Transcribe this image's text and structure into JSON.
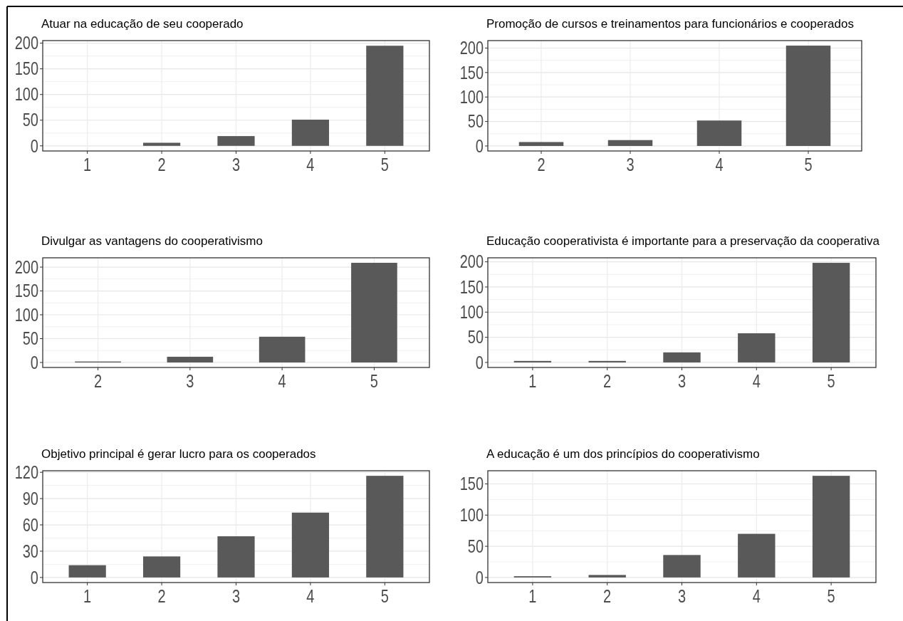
{
  "chart_data": [
    {
      "type": "bar",
      "title": "Atuar na educação de seu cooperado",
      "categories": [
        "1",
        "2",
        "3",
        "4",
        "5"
      ],
      "values": [
        0,
        6,
        19,
        51,
        195
      ],
      "color": "#595959",
      "ylim": [
        -10,
        205
      ],
      "yticks": [
        0,
        50,
        100,
        150,
        200
      ],
      "grid": true
    },
    {
      "type": "bar",
      "title": "Promoção de cursos e treinamentos para funcionários e cooperados",
      "categories": [
        "2",
        "3",
        "4",
        "5"
      ],
      "values": [
        8,
        12,
        52,
        205
      ],
      "color": "#595959",
      "ylim": [
        -10.25,
        215.25
      ],
      "yticks": [
        0,
        50,
        100,
        150,
        200
      ],
      "grid": true
    },
    {
      "type": "bar",
      "title": "Divulgar as vantagens do cooperativismo",
      "categories": [
        "2",
        "3",
        "4",
        "5"
      ],
      "values": [
        2,
        12,
        54,
        209
      ],
      "color": "#595959",
      "ylim": [
        -10.5,
        219.5
      ],
      "yticks": [
        0,
        50,
        100,
        150,
        200
      ],
      "grid": true
    },
    {
      "type": "bar",
      "title": "Educação cooperativista é importante para a preservação da cooperativa",
      "categories": [
        "1",
        "2",
        "3",
        "4",
        "5"
      ],
      "values": [
        3,
        3,
        20,
        58,
        198
      ],
      "color": "#595959",
      "ylim": [
        -10,
        208
      ],
      "yticks": [
        0,
        50,
        100,
        150,
        200
      ],
      "grid": true
    },
    {
      "type": "bar",
      "title": "Objetivo principal é gerar lucro para os cooperados",
      "categories": [
        "1",
        "2",
        "3",
        "4",
        "5"
      ],
      "values": [
        14,
        24,
        47,
        74,
        116
      ],
      "color": "#595959",
      "ylim": [
        -5.8,
        121.8
      ],
      "yticks": [
        0,
        30,
        60,
        90,
        120
      ],
      "grid": true
    },
    {
      "type": "bar",
      "title": "A educação é um dos princípios do cooperativismo",
      "categories": [
        "1",
        "2",
        "3",
        "4",
        "5"
      ],
      "values": [
        2,
        4,
        36,
        70,
        163
      ],
      "color": "#595959",
      "ylim": [
        -8.15,
        171.15
      ],
      "yticks": [
        0,
        50,
        100,
        150
      ],
      "grid": true
    }
  ]
}
